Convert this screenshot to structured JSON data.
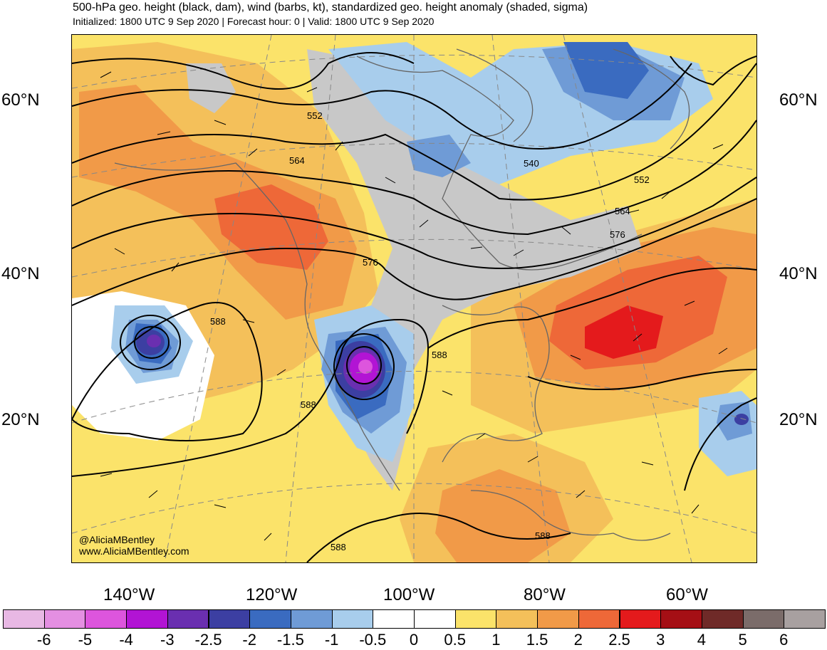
{
  "header": {
    "title": "500-hPa geo. height (black, dam), wind (barbs, kt), standardized geo. height anomaly (shaded, sigma)",
    "subtitle": "Initialized: 1800 UTC 9 Sep 2020 | Forecast hour: 0 | Valid: 1800 UTC 9 Sep 2020"
  },
  "axes": {
    "lat_left": [
      "60°N",
      "40°N",
      "20°N"
    ],
    "lat_right": [
      "60°N",
      "40°N",
      "20°N"
    ],
    "lon_bottom": [
      "140°W",
      "120°W",
      "100°W",
      "80°W",
      "60°W"
    ]
  },
  "contour_labels": [
    "552",
    "564",
    "576",
    "588",
    "540",
    "552",
    "564",
    "576",
    "588",
    "588",
    "588",
    "588"
  ],
  "credit": {
    "handle": "@AliciaMBentley",
    "website": "www.AliciaMBentley.com"
  },
  "colorbar": {
    "labels": [
      "-6",
      "-5",
      "-4",
      "-3",
      "-2.5",
      "-2",
      "-1.5",
      "-1",
      "-0.5",
      "0",
      "0.5",
      "1",
      "1.5",
      "2",
      "2.5",
      "3",
      "4",
      "5",
      "6"
    ],
    "colors": [
      "#e8b8e4",
      "#e48fe2",
      "#dd55dd",
      "#b214d4",
      "#6a2fb0",
      "#3c3fa2",
      "#3a6bc0",
      "#6f9bd6",
      "#a8cdec",
      "#ffffff",
      "#ffffff",
      "#fbe36a",
      "#f4c05a",
      "#f19a48",
      "#ee6838",
      "#e41a1c",
      "#a50f15",
      "#6f2a28",
      "#7b6c6a",
      "#a8a0a0"
    ]
  },
  "colors": {
    "land_outline": "#666666",
    "contour": "#000000",
    "grid": "#888888"
  }
}
